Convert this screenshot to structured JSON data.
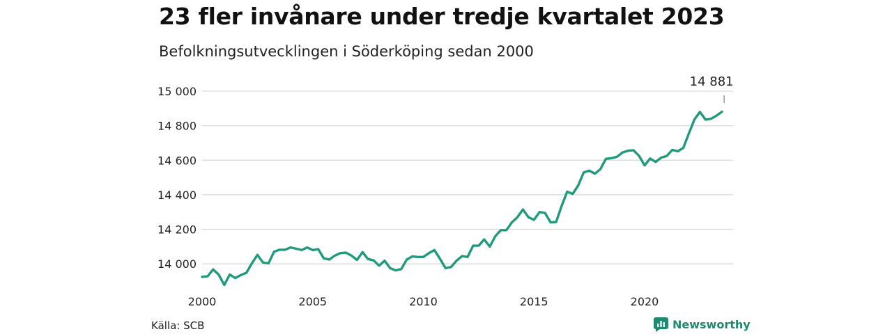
{
  "title": "23 fler invånare under tredje kvartalet 2023",
  "subtitle": "Befolkningsutvecklingen i Söderköping sedan 2000",
  "source": "Källa: SCB",
  "brand": "Newsworthy",
  "colors": {
    "line": "#1f9a7c",
    "grid": "#d9d9d9",
    "brand": "#1f8a70"
  },
  "chart_data": {
    "type": "line",
    "title": "23 fler invånare under tredje kvartalet 2023",
    "subtitle": "Befolkningsutvecklingen i Söderköping sedan 2000",
    "xlabel": "",
    "ylabel": "",
    "xlim": [
      2000,
      2024
    ],
    "ylim": [
      13880,
      15020
    ],
    "x_ticks": [
      2000,
      2005,
      2010,
      2015,
      2020
    ],
    "x_tick_labels": [
      "2000",
      "2005",
      "2010",
      "2015",
      "2020"
    ],
    "y_ticks": [
      14000,
      14200,
      14400,
      14600,
      14800,
      15000
    ],
    "y_tick_labels": [
      "14 000",
      "14 200",
      "14 400",
      "14 600",
      "14 800",
      "15 000"
    ],
    "grid": "horizontal",
    "end_label": "14 881",
    "series": [
      {
        "x": [
          "2000-Q1",
          "2000-Q2",
          "2000-Q3",
          "2000-Q4",
          "2001-Q1",
          "2001-Q2",
          "2001-Q3",
          "2001-Q4",
          "2002-Q1",
          "2002-Q2",
          "2002-Q3",
          "2002-Q4",
          "2003-Q1",
          "2003-Q2",
          "2003-Q3",
          "2003-Q4",
          "2004-Q1",
          "2004-Q2",
          "2004-Q3",
          "2004-Q4",
          "2005-Q1",
          "2005-Q2",
          "2005-Q3",
          "2005-Q4",
          "2006-Q1",
          "2006-Q2",
          "2006-Q3",
          "2006-Q4",
          "2007-Q1",
          "2007-Q2",
          "2007-Q3",
          "2007-Q4",
          "2008-Q1",
          "2008-Q2",
          "2008-Q3",
          "2008-Q4",
          "2009-Q1",
          "2009-Q2",
          "2009-Q3",
          "2009-Q4",
          "2010-Q1",
          "2010-Q2",
          "2010-Q3",
          "2010-Q4",
          "2011-Q1",
          "2011-Q2",
          "2011-Q3",
          "2011-Q4",
          "2012-Q1",
          "2012-Q2",
          "2012-Q3",
          "2012-Q4",
          "2013-Q1",
          "2013-Q2",
          "2013-Q3",
          "2013-Q4",
          "2014-Q1",
          "2014-Q2",
          "2014-Q3",
          "2014-Q4",
          "2015-Q1",
          "2015-Q2",
          "2015-Q3",
          "2015-Q4",
          "2016-Q1",
          "2016-Q2",
          "2016-Q3",
          "2016-Q4",
          "2017-Q1",
          "2017-Q2",
          "2017-Q3",
          "2017-Q4",
          "2018-Q1",
          "2018-Q2",
          "2018-Q3",
          "2018-Q4",
          "2019-Q1",
          "2019-Q2",
          "2019-Q3",
          "2019-Q4",
          "2020-Q1",
          "2020-Q2",
          "2020-Q3",
          "2020-Q4",
          "2021-Q1",
          "2021-Q2",
          "2021-Q3",
          "2021-Q4",
          "2022-Q1",
          "2022-Q2",
          "2022-Q3",
          "2022-Q4",
          "2023-Q1",
          "2023-Q2",
          "2023-Q3"
        ],
        "values": [
          13925,
          13928,
          13968,
          13938,
          13878,
          13938,
          13918,
          13935,
          13948,
          14003,
          14052,
          14008,
          14003,
          14070,
          14082,
          14082,
          14095,
          14088,
          14080,
          14095,
          14080,
          14085,
          14032,
          14025,
          14048,
          14062,
          14065,
          14048,
          14023,
          14068,
          14028,
          14020,
          13990,
          14018,
          13975,
          13962,
          13970,
          14025,
          14043,
          14040,
          14040,
          14062,
          14080,
          14030,
          13975,
          13982,
          14018,
          14045,
          14040,
          14105,
          14105,
          14142,
          14100,
          14160,
          14195,
          14195,
          14240,
          14270,
          14315,
          14270,
          14255,
          14300,
          14295,
          14240,
          14242,
          14335,
          14418,
          14405,
          14455,
          14530,
          14540,
          14522,
          14548,
          14608,
          14612,
          14620,
          14645,
          14655,
          14658,
          14625,
          14570,
          14610,
          14590,
          14615,
          14625,
          14660,
          14652,
          14672,
          14755,
          14835,
          14880,
          14835,
          14840,
          14858,
          14881
        ]
      }
    ]
  }
}
